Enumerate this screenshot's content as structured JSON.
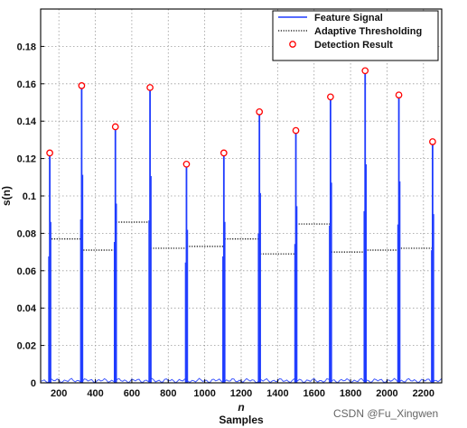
{
  "chart_data": {
    "type": "line",
    "xlim": [
      100,
      2300
    ],
    "ylim": [
      0,
      0.2
    ],
    "x_ticks": [
      200,
      400,
      600,
      800,
      1000,
      1200,
      1400,
      1600,
      1800,
      2000,
      2200
    ],
    "y_ticks": [
      0,
      0.02,
      0.04,
      0.06,
      0.08,
      0.1,
      0.12,
      0.14,
      0.16,
      0.18
    ],
    "xlabel_italic": "n",
    "xlabel": "Samples",
    "ylabel": "s(n)",
    "grid": "on",
    "legend_position": "top-right",
    "legend": [
      {
        "name": "Feature Signal",
        "style": "line",
        "color": "#1f3cff"
      },
      {
        "name": "Adaptive Thresholding",
        "style": "dotted",
        "color": "#000000"
      },
      {
        "name": "Detection Result",
        "style": "circle",
        "color": "#ff0000"
      }
    ],
    "series": [
      {
        "name": "Feature Signal",
        "color": "#1f3cff",
        "peaks": [
          {
            "x": 150,
            "y": 0.123
          },
          {
            "x": 325,
            "y": 0.159
          },
          {
            "x": 510,
            "y": 0.137
          },
          {
            "x": 700,
            "y": 0.158
          },
          {
            "x": 900,
            "y": 0.117
          },
          {
            "x": 1105,
            "y": 0.123
          },
          {
            "x": 1300,
            "y": 0.145
          },
          {
            "x": 1500,
            "y": 0.135
          },
          {
            "x": 1690,
            "y": 0.153
          },
          {
            "x": 1880,
            "y": 0.167
          },
          {
            "x": 2065,
            "y": 0.154
          },
          {
            "x": 2250,
            "y": 0.129
          }
        ]
      },
      {
        "name": "Adaptive Thresholding",
        "color": "#000000",
        "segments": [
          {
            "x_start": 160,
            "x_end": 325,
            "y": 0.077
          },
          {
            "x_start": 325,
            "x_end": 510,
            "y": 0.071
          },
          {
            "x_start": 510,
            "x_end": 700,
            "y": 0.086
          },
          {
            "x_start": 700,
            "x_end": 900,
            "y": 0.072
          },
          {
            "x_start": 900,
            "x_end": 1105,
            "y": 0.073
          },
          {
            "x_start": 1105,
            "x_end": 1300,
            "y": 0.077
          },
          {
            "x_start": 1300,
            "x_end": 1500,
            "y": 0.069
          },
          {
            "x_start": 1500,
            "x_end": 1690,
            "y": 0.085
          },
          {
            "x_start": 1690,
            "x_end": 1880,
            "y": 0.07
          },
          {
            "x_start": 1880,
            "x_end": 2065,
            "y": 0.071
          },
          {
            "x_start": 2065,
            "x_end": 2250,
            "y": 0.072
          }
        ]
      },
      {
        "name": "Detection Result",
        "color": "#ff0000",
        "points": [
          {
            "x": 150,
            "y": 0.123
          },
          {
            "x": 325,
            "y": 0.159
          },
          {
            "x": 510,
            "y": 0.137
          },
          {
            "x": 700,
            "y": 0.158
          },
          {
            "x": 900,
            "y": 0.117
          },
          {
            "x": 1105,
            "y": 0.123
          },
          {
            "x": 1300,
            "y": 0.145
          },
          {
            "x": 1500,
            "y": 0.135
          },
          {
            "x": 1690,
            "y": 0.153
          },
          {
            "x": 1880,
            "y": 0.167
          },
          {
            "x": 2065,
            "y": 0.154
          },
          {
            "x": 2250,
            "y": 0.129
          }
        ]
      }
    ]
  },
  "watermark": "CSDN @Fu_Xingwen"
}
